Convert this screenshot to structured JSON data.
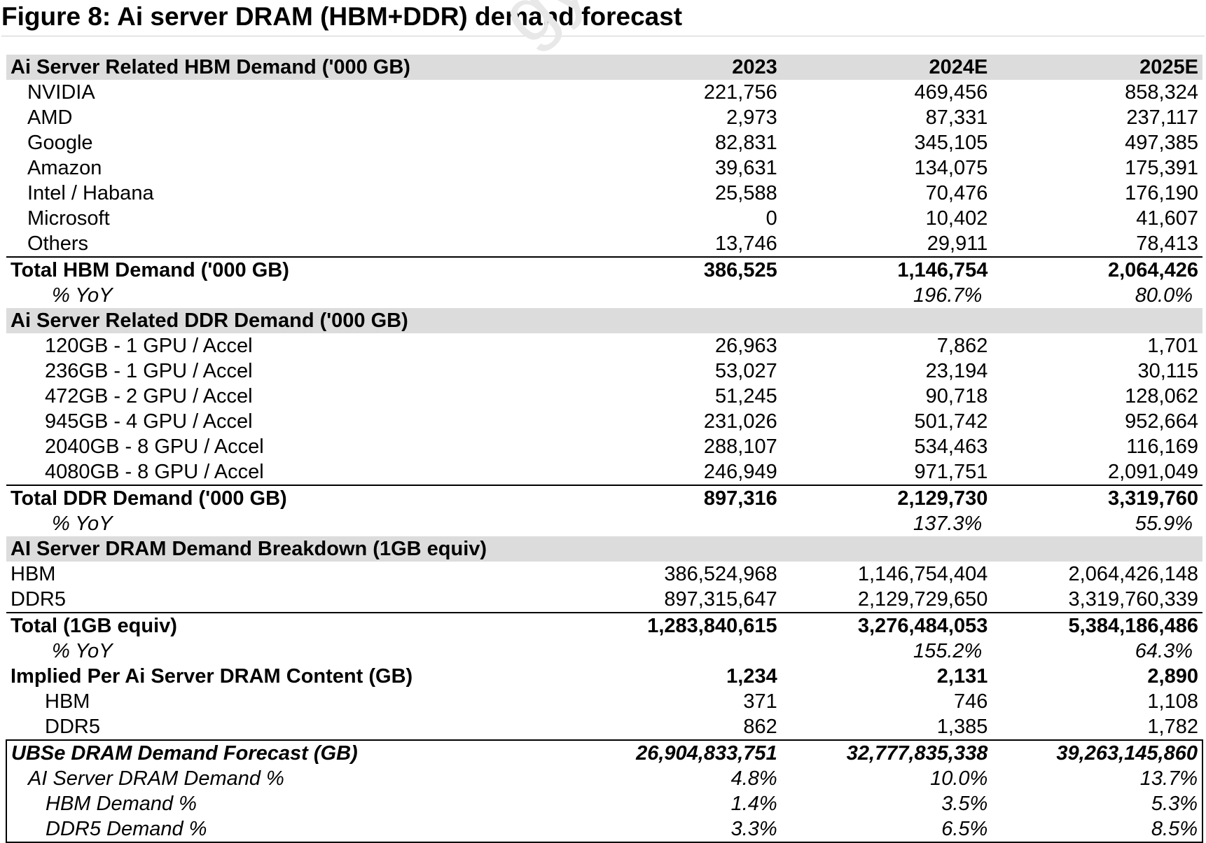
{
  "title": "Figure 8: Ai server DRAM (HBM+DDR) demand forecast",
  "watermark": "gy",
  "columns": [
    "2023",
    "2024E",
    "2025E"
  ],
  "sections": {
    "hbm": {
      "header": "Ai Server Related HBM Demand ('000 GB)",
      "rows": [
        {
          "label": "NVIDIA",
          "values": [
            "221,756",
            "469,456",
            "858,324"
          ]
        },
        {
          "label": "AMD",
          "values": [
            "2,973",
            "87,331",
            "237,117"
          ]
        },
        {
          "label": "Google",
          "values": [
            "82,831",
            "345,105",
            "497,385"
          ]
        },
        {
          "label": "Amazon",
          "values": [
            "39,631",
            "134,075",
            "175,391"
          ]
        },
        {
          "label": "Intel / Habana",
          "values": [
            "25,588",
            "70,476",
            "176,190"
          ]
        },
        {
          "label": "Microsoft",
          "values": [
            "0",
            "10,402",
            "41,607"
          ]
        },
        {
          "label": "Others",
          "values": [
            "13,746",
            "29,911",
            "78,413"
          ]
        }
      ],
      "total": {
        "label": "Total HBM Demand ('000 GB)",
        "values": [
          "386,525",
          "1,146,754",
          "2,064,426"
        ]
      },
      "yoy": {
        "label": "% YoY",
        "values": [
          "",
          "196.7%",
          "80.0%"
        ]
      }
    },
    "ddr": {
      "header": "Ai Server Related DDR Demand ('000 GB)",
      "rows": [
        {
          "label": "120GB - 1 GPU / Accel",
          "values": [
            "26,963",
            "7,862",
            "1,701"
          ]
        },
        {
          "label": "236GB - 1 GPU / Accel",
          "values": [
            "53,027",
            "23,194",
            "30,115"
          ]
        },
        {
          "label": "472GB - 2 GPU / Accel",
          "values": [
            "51,245",
            "90,718",
            "128,062"
          ]
        },
        {
          "label": "945GB - 4 GPU / Accel",
          "values": [
            "231,026",
            "501,742",
            "952,664"
          ]
        },
        {
          "label": "2040GB - 8 GPU / Accel",
          "values": [
            "288,107",
            "534,463",
            "116,169"
          ]
        },
        {
          "label": "4080GB - 8 GPU / Accel",
          "values": [
            "246,949",
            "971,751",
            "2,091,049"
          ]
        }
      ],
      "total": {
        "label": "Total DDR Demand ('000 GB)",
        "values": [
          "897,316",
          "2,129,730",
          "3,319,760"
        ]
      },
      "yoy": {
        "label": "% YoY",
        "values": [
          "",
          "137.3%",
          "55.9%"
        ]
      }
    },
    "breakdown": {
      "header": "AI Server DRAM Demand Breakdown (1GB equiv)",
      "rows": [
        {
          "label": "HBM",
          "values": [
            "386,524,968",
            "1,146,754,404",
            "2,064,426,148"
          ]
        },
        {
          "label": "DDR5",
          "values": [
            "897,315,647",
            "2,129,729,650",
            "3,319,760,339"
          ]
        }
      ],
      "total": {
        "label": "Total (1GB equiv)",
        "values": [
          "1,283,840,615",
          "3,276,484,053",
          "5,384,186,486"
        ]
      },
      "yoy": {
        "label": "% YoY",
        "values": [
          "",
          "155.2%",
          "64.3%"
        ]
      }
    },
    "content": {
      "header": {
        "label": "Implied Per Ai Server DRAM Content (GB)",
        "values": [
          "1,234",
          "2,131",
          "2,890"
        ]
      },
      "rows": [
        {
          "label": "HBM",
          "values": [
            "371",
            "746",
            "1,108"
          ]
        },
        {
          "label": "DDR5",
          "values": [
            "862",
            "1,385",
            "1,782"
          ]
        }
      ]
    },
    "forecast": {
      "header": {
        "label": "UBSe DRAM Demand Forecast (GB)",
        "values": [
          "26,904,833,751",
          "32,777,835,338",
          "39,263,145,860"
        ]
      },
      "rows": [
        {
          "label": "AI Server DRAM Demand %",
          "values": [
            "4.8%",
            "10.0%",
            "13.7%"
          ]
        },
        {
          "label": "HBM Demand %",
          "values": [
            "1.4%",
            "3.5%",
            "5.3%"
          ]
        },
        {
          "label": "DDR5 Demand %",
          "values": [
            "3.3%",
            "6.5%",
            "8.5%"
          ]
        }
      ]
    }
  }
}
